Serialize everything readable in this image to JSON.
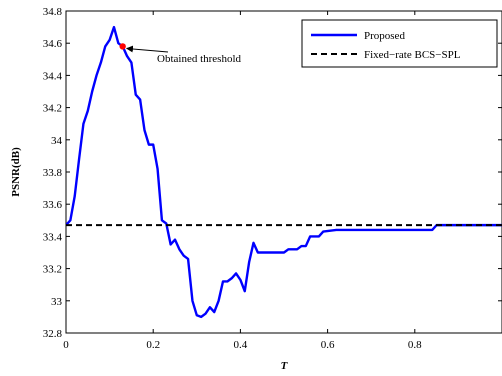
{
  "chart_data": {
    "type": "line",
    "title": "",
    "xlabel": "T",
    "ylabel": "PSNR(dB)",
    "xlim": [
      0,
      1
    ],
    "ylim": [
      32.8,
      34.8
    ],
    "xticks": [
      0,
      0.2,
      0.4,
      0.6,
      0.8
    ],
    "xtick_labels": [
      "0",
      "0.2",
      "0.4",
      "0.6",
      "0.8"
    ],
    "yticks": [
      32.8,
      33,
      33.2,
      33.4,
      33.6,
      33.8,
      34,
      34.2,
      34.4,
      34.6,
      34.8
    ],
    "ytick_labels": [
      "32.8",
      "33",
      "33.2",
      "33.4",
      "33.6",
      "33.8",
      "34",
      "34.2",
      "34.4",
      "34.6",
      "34.8"
    ],
    "grid": false,
    "legend_position": "top-right",
    "series": [
      {
        "name": "Proposed",
        "style": "solid",
        "color": "#0000ff",
        "points": [
          [
            0.0,
            33.47
          ],
          [
            0.01,
            33.5
          ],
          [
            0.02,
            33.65
          ],
          [
            0.03,
            33.88
          ],
          [
            0.04,
            34.1
          ],
          [
            0.05,
            34.18
          ],
          [
            0.06,
            34.3
          ],
          [
            0.07,
            34.4
          ],
          [
            0.08,
            34.48
          ],
          [
            0.09,
            34.58
          ],
          [
            0.1,
            34.62
          ],
          [
            0.11,
            34.7
          ],
          [
            0.12,
            34.6
          ],
          [
            0.13,
            34.58
          ],
          [
            0.14,
            34.52
          ],
          [
            0.15,
            34.48
          ],
          [
            0.16,
            34.28
          ],
          [
            0.17,
            34.25
          ],
          [
            0.18,
            34.06
          ],
          [
            0.19,
            33.97
          ],
          [
            0.2,
            33.97
          ],
          [
            0.21,
            33.82
          ],
          [
            0.22,
            33.5
          ],
          [
            0.23,
            33.48
          ],
          [
            0.24,
            33.35
          ],
          [
            0.25,
            33.38
          ],
          [
            0.26,
            33.32
          ],
          [
            0.27,
            33.28
          ],
          [
            0.28,
            33.26
          ],
          [
            0.29,
            33.0
          ],
          [
            0.3,
            32.91
          ],
          [
            0.31,
            32.9
          ],
          [
            0.32,
            32.92
          ],
          [
            0.33,
            32.96
          ],
          [
            0.34,
            32.93
          ],
          [
            0.35,
            33.0
          ],
          [
            0.36,
            33.12
          ],
          [
            0.37,
            33.12
          ],
          [
            0.38,
            33.14
          ],
          [
            0.39,
            33.17
          ],
          [
            0.4,
            33.13
          ],
          [
            0.41,
            33.06
          ],
          [
            0.42,
            33.24
          ],
          [
            0.43,
            33.36
          ],
          [
            0.44,
            33.3
          ],
          [
            0.46,
            33.3
          ],
          [
            0.48,
            33.3
          ],
          [
            0.5,
            33.3
          ],
          [
            0.51,
            33.32
          ],
          [
            0.53,
            33.32
          ],
          [
            0.54,
            33.34
          ],
          [
            0.55,
            33.34
          ],
          [
            0.56,
            33.4
          ],
          [
            0.58,
            33.4
          ],
          [
            0.59,
            33.43
          ],
          [
            0.62,
            33.44
          ],
          [
            0.7,
            33.44
          ],
          [
            0.8,
            33.44
          ],
          [
            0.84,
            33.44
          ],
          [
            0.85,
            33.47
          ],
          [
            1.0,
            33.47
          ]
        ]
      },
      {
        "name": "Fixed−rate BCS−SPL",
        "style": "dashed",
        "color": "#000000",
        "points": [
          [
            0.0,
            33.47
          ],
          [
            1.0,
            33.47
          ]
        ]
      }
    ],
    "annotations": [
      {
        "text": "Obtained threshold",
        "x": 0.13,
        "y": 34.58,
        "marker_color": "#ff0000"
      }
    ]
  }
}
